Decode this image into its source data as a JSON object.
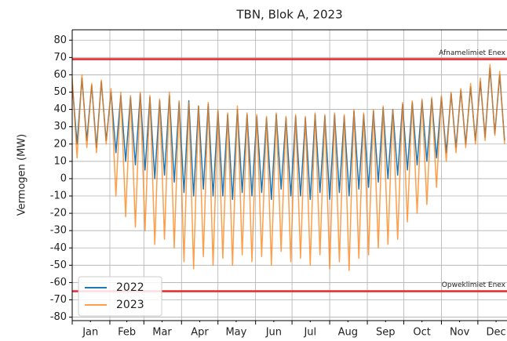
{
  "chart_data": {
    "type": "line",
    "title": "TBN, Blok A, 2023",
    "y_label": "Vermogen (MW)",
    "x": [
      0,
      4,
      8,
      12,
      16,
      20,
      24,
      28,
      32,
      36,
      40,
      44,
      48,
      52,
      56,
      60,
      64,
      68,
      72,
      76,
      80,
      84,
      88,
      92,
      96,
      100,
      104,
      108,
      112,
      116,
      120,
      124,
      128,
      132,
      136,
      140,
      144,
      148,
      152,
      156,
      160,
      164,
      168,
      172,
      176,
      180,
      184,
      188,
      192,
      196,
      200,
      204,
      208,
      212,
      216,
      220,
      224,
      228,
      232,
      236,
      240,
      244,
      248,
      252,
      256,
      260,
      264,
      268,
      272,
      276,
      280,
      284,
      288,
      292,
      296,
      300,
      304,
      308,
      312,
      316,
      320,
      324,
      328,
      332,
      336,
      340,
      344,
      348,
      352,
      356
    ],
    "series": [
      {
        "name": "2022",
        "color": "#1f77b4",
        "opacity": 1,
        "values": [
          55,
          20,
          58,
          22,
          54,
          18,
          56,
          22,
          50,
          15,
          48,
          10,
          47,
          8,
          49,
          5,
          47,
          0,
          45,
          2,
          48,
          -2,
          44,
          -8,
          45,
          -10,
          42,
          -6,
          43,
          -10,
          39,
          -10,
          37,
          -12,
          40,
          -8,
          37,
          -10,
          36,
          -8,
          35,
          -12,
          37,
          -6,
          35,
          -10,
          36,
          -10,
          35,
          -12,
          37,
          -8,
          36,
          -12,
          37,
          -8,
          36,
          -10,
          39,
          -6,
          37,
          -5,
          39,
          -2,
          41,
          0,
          40,
          2,
          43,
          5,
          44,
          8,
          45,
          10,
          46,
          12,
          47,
          15,
          49,
          18,
          51,
          20,
          53,
          22,
          56,
          24,
          64,
          26,
          60,
          22
        ]
      },
      {
        "name": "2023",
        "color": "#ff7f0e",
        "opacity": 0.75,
        "values": [
          58,
          12,
          60,
          18,
          55,
          15,
          57,
          20,
          52,
          -10,
          50,
          -22,
          48,
          -28,
          50,
          -30,
          48,
          -38,
          46,
          -35,
          50,
          -40,
          45,
          -48,
          44,
          -52,
          42,
          -45,
          44,
          -50,
          40,
          -46,
          38,
          -50,
          42,
          -44,
          38,
          -48,
          37,
          -45,
          36,
          -50,
          38,
          -42,
          36,
          -48,
          37,
          -46,
          36,
          -50,
          38,
          -44,
          37,
          -52,
          38,
          -48,
          37,
          -53,
          40,
          -46,
          38,
          -44,
          40,
          -40,
          42,
          -38,
          40,
          -35,
          44,
          -25,
          45,
          -20,
          46,
          -15,
          47,
          -5,
          48,
          10,
          50,
          15,
          52,
          18,
          55,
          20,
          58,
          22,
          66,
          25,
          62,
          20
        ]
      }
    ],
    "hlines": [
      {
        "value": 69,
        "label": "Afnamelimiet Enex",
        "color": "#e8262b"
      },
      {
        "value": -65,
        "label": "Opweklimiet Enex",
        "color": "#e8262b"
      }
    ],
    "xlim": [
      0,
      358
    ],
    "xticks": [
      {
        "value": 15,
        "label": "Jan"
      },
      {
        "value": 45,
        "label": "Feb"
      },
      {
        "value": 74,
        "label": "Mar"
      },
      {
        "value": 105,
        "label": "Apr"
      },
      {
        "value": 135,
        "label": "May"
      },
      {
        "value": 166,
        "label": "Jun"
      },
      {
        "value": 196,
        "label": "Jul"
      },
      {
        "value": 227,
        "label": "Aug"
      },
      {
        "value": 258,
        "label": "Sep"
      },
      {
        "value": 288,
        "label": "Oct"
      },
      {
        "value": 319,
        "label": "Nov"
      },
      {
        "value": 349,
        "label": "Dec"
      }
    ],
    "xgrid": [
      0,
      31,
      59,
      90,
      120,
      151,
      181,
      212,
      243,
      273,
      304,
      334
    ],
    "ylim": [
      -82,
      86
    ],
    "yticks": [
      -80,
      -70,
      -60,
      -50,
      -40,
      -30,
      -20,
      -10,
      0,
      10,
      20,
      30,
      40,
      50,
      60,
      70,
      80
    ],
    "grid": true,
    "legend": "lower left"
  }
}
